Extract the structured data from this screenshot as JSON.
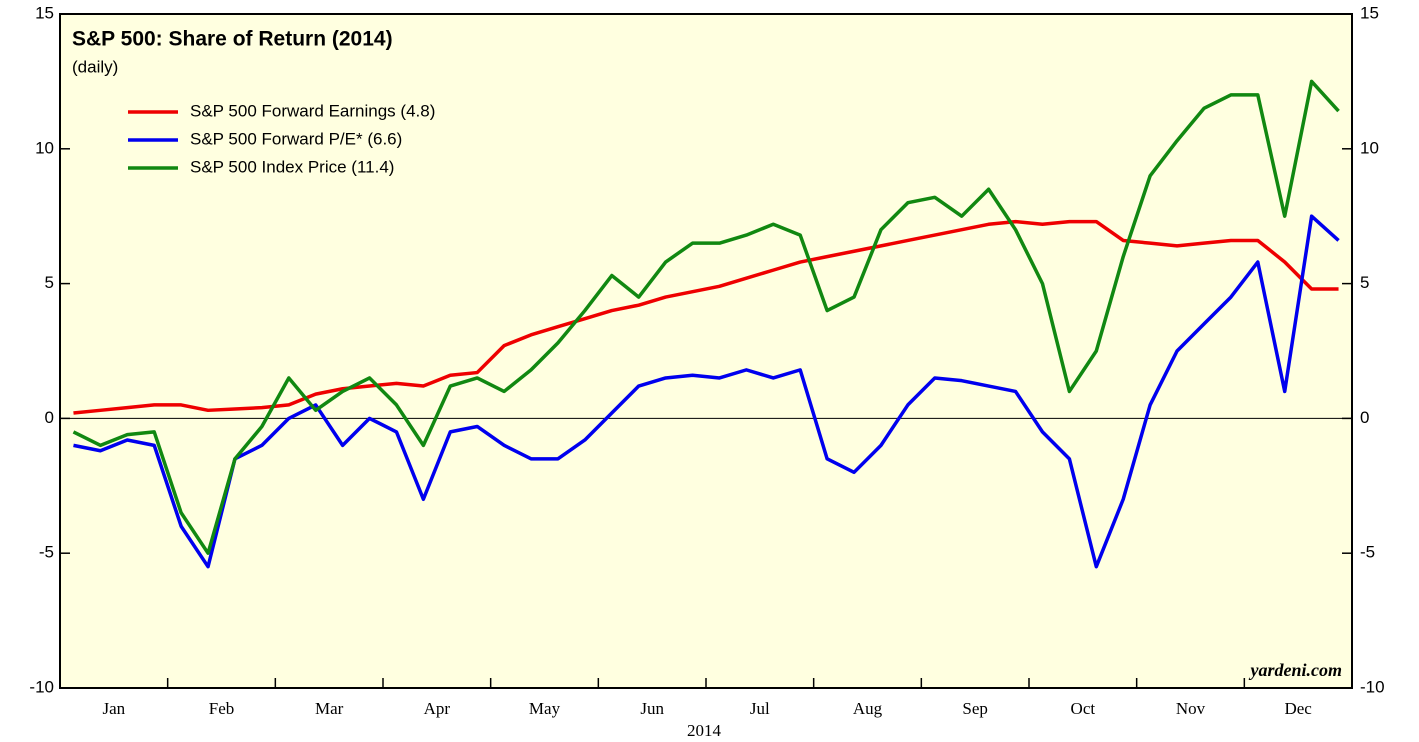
{
  "chart_data": {
    "type": "line",
    "title": "S&P 500: Share of Return (2014)",
    "subtitle": "(daily)",
    "xlabel": "2014",
    "annotation": "yardeni.com",
    "categories": [
      null,
      "Jan",
      null,
      null,
      null,
      "Feb",
      null,
      null,
      null,
      "Mar",
      null,
      null,
      null,
      "Apr",
      null,
      null,
      null,
      "May",
      null,
      null,
      null,
      "Jun",
      null,
      null,
      null,
      "Jul",
      null,
      null,
      null,
      "Aug",
      null,
      null,
      null,
      "Sep",
      null,
      null,
      null,
      "Oct",
      null,
      null,
      null,
      "Nov",
      null,
      null,
      null,
      "Dec",
      null,
      null
    ],
    "series": [
      {
        "name": "S&P 500 Forward Earnings (4.8)",
        "color": "#ee0000",
        "values": [
          0.2,
          0.3,
          0.4,
          0.5,
          0.5,
          0.3,
          0.35,
          0.4,
          0.5,
          0.9,
          1.1,
          1.2,
          1.3,
          1.2,
          1.6,
          1.7,
          2.7,
          3.1,
          3.4,
          3.7,
          4.0,
          4.2,
          4.5,
          4.7,
          4.9,
          5.2,
          5.5,
          5.8,
          6.0,
          6.2,
          6.4,
          6.6,
          6.8,
          7.0,
          7.2,
          7.3,
          7.2,
          7.3,
          7.3,
          6.6,
          6.5,
          6.4,
          6.5,
          6.6,
          6.6,
          5.8,
          4.8,
          4.8
        ]
      },
      {
        "name": "S&P 500 Forward P/E* (6.6)",
        "color": "#0000ee",
        "values": [
          -1.0,
          -1.2,
          -0.8,
          -1.0,
          -4.0,
          -5.5,
          -1.5,
          -1.0,
          0.0,
          0.5,
          -1.0,
          0.0,
          -0.5,
          -3.0,
          -0.5,
          -0.3,
          -1.0,
          -1.5,
          -1.5,
          -0.8,
          0.2,
          1.2,
          1.5,
          1.6,
          1.5,
          1.8,
          1.5,
          1.8,
          -1.5,
          -2.0,
          -1.0,
          0.5,
          1.5,
          1.4,
          1.2,
          1.0,
          -0.5,
          -1.5,
          -5.5,
          -3.0,
          0.5,
          2.5,
          3.5,
          4.5,
          5.8,
          1.0,
          7.5,
          6.6
        ]
      },
      {
        "name": "S&P 500 Index Price (11.4)",
        "color": "#118811",
        "values": [
          -0.5,
          -1.0,
          -0.6,
          -0.5,
          -3.5,
          -5.0,
          -1.5,
          -0.3,
          1.5,
          0.3,
          1.0,
          1.5,
          0.5,
          -1.0,
          1.2,
          1.5,
          1.0,
          1.8,
          2.8,
          4.0,
          5.3,
          4.5,
          5.8,
          6.5,
          6.5,
          6.8,
          7.2,
          6.8,
          4.0,
          4.5,
          7.0,
          8.0,
          8.2,
          7.5,
          8.5,
          7.0,
          5.0,
          1.0,
          2.5,
          6.0,
          9.0,
          10.3,
          11.5,
          12.0,
          12.0,
          7.5,
          12.5,
          11.4
        ]
      }
    ],
    "ylim": [
      -10,
      15
    ],
    "yticks": [
      -10,
      -5,
      0,
      5,
      10,
      15
    ]
  }
}
